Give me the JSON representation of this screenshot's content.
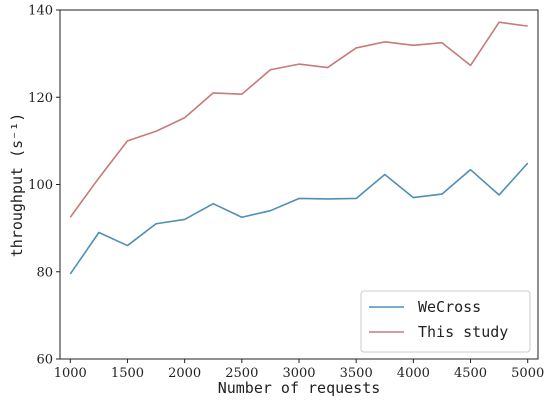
{
  "chart_data": {
    "type": "line",
    "title": "",
    "xlabel": "Number of requests",
    "ylabel": "throughput (s⁻¹)",
    "xlim": [
      910,
      5090
    ],
    "ylim": [
      60,
      140
    ],
    "xticks": [
      "1000",
      "1500",
      "2000",
      "2500",
      "3000",
      "3500",
      "4000",
      "4500",
      "5000"
    ],
    "yticks": [
      "60",
      "80",
      "100",
      "120",
      "140"
    ],
    "grid": false,
    "legend_position": "lower-right",
    "x": [
      1000,
      1250,
      1500,
      1750,
      2000,
      2250,
      2500,
      2750,
      3000,
      3250,
      3500,
      3750,
      4000,
      4250,
      4500,
      4750,
      5000
    ],
    "series": [
      {
        "name": "WeCross",
        "color": "#4f8fb5",
        "values": [
          79.5,
          89,
          86,
          91,
          92,
          95.6,
          92.5,
          94,
          96.8,
          96.7,
          96.8,
          102.3,
          97,
          97.8,
          103.4,
          97.6,
          104.9
        ]
      },
      {
        "name": "This study",
        "color": "#c87a78",
        "values": [
          92.5,
          101.5,
          110,
          112.2,
          115.3,
          121,
          120.7,
          126.3,
          127.6,
          126.8,
          131.3,
          132.7,
          131.9,
          132.5,
          127.3,
          137.2,
          136.3
        ]
      }
    ]
  }
}
